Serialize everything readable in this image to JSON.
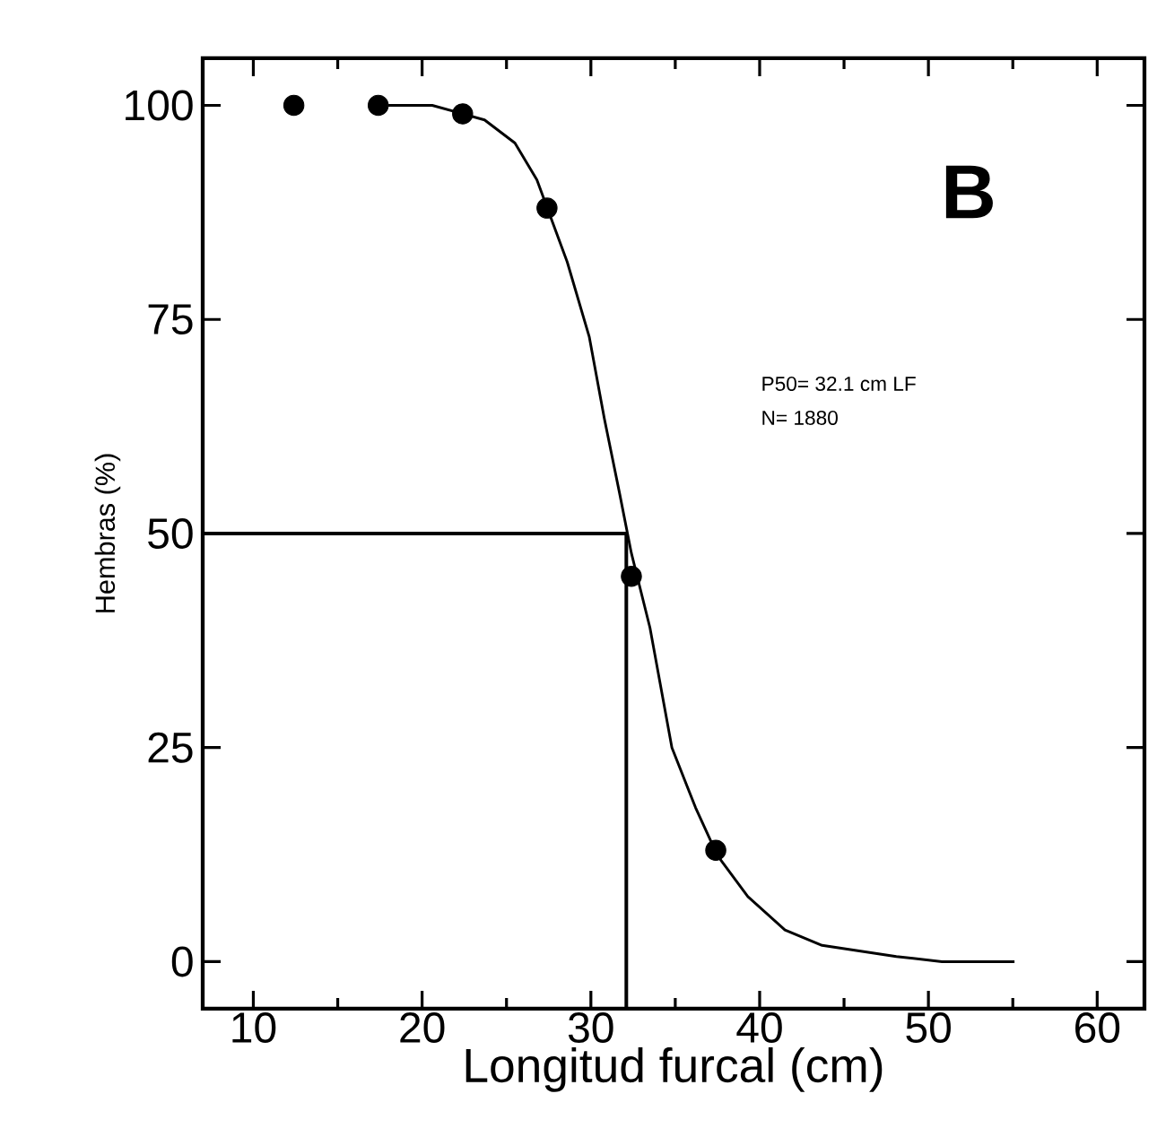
{
  "chart_data": {
    "type": "scatter",
    "xlabel": "Longitud furcal (cm)",
    "ylabel": "Hembras (%)",
    "annotations": [
      "B",
      "P50= 32.1 cm LF",
      "N= 1880"
    ],
    "xlim": [
      7,
      62.8
    ],
    "ylim": [
      -5.5,
      105.5
    ],
    "xticks": [
      10,
      20,
      30,
      40,
      50,
      60
    ],
    "yticks": [
      0,
      25,
      50,
      75,
      100
    ],
    "series": [
      {
        "color": "#000000",
        "marker": "circle",
        "x": [
          12.4,
          17.4,
          22.4,
          27.4,
          32.4,
          37.4
        ],
        "values": [
          100,
          100,
          99,
          88,
          45,
          13
        ]
      },
      {
        "type": "line",
        "color": "#000000",
        "marker": "none",
        "x": [
          18,
          20.6,
          23.7,
          25.5,
          26.8,
          28.6,
          29.9,
          30.8,
          31.7,
          32.4,
          33.5,
          34.8,
          36.2,
          37.5,
          39.3,
          41.5,
          43.7,
          48.1,
          50.8,
          55.1
        ],
        "values": [
          100,
          100,
          98.3,
          95.6,
          91.3,
          81.7,
          73,
          63.4,
          54.7,
          47.7,
          39,
          25,
          18,
          12.4,
          7.6,
          3.7,
          1.9,
          0.6,
          0,
          0
        ]
      }
    ],
    "ref_lines": [
      {
        "axis": "y",
        "value": 50
      },
      {
        "axis": "x",
        "value": 32.1
      }
    ]
  }
}
